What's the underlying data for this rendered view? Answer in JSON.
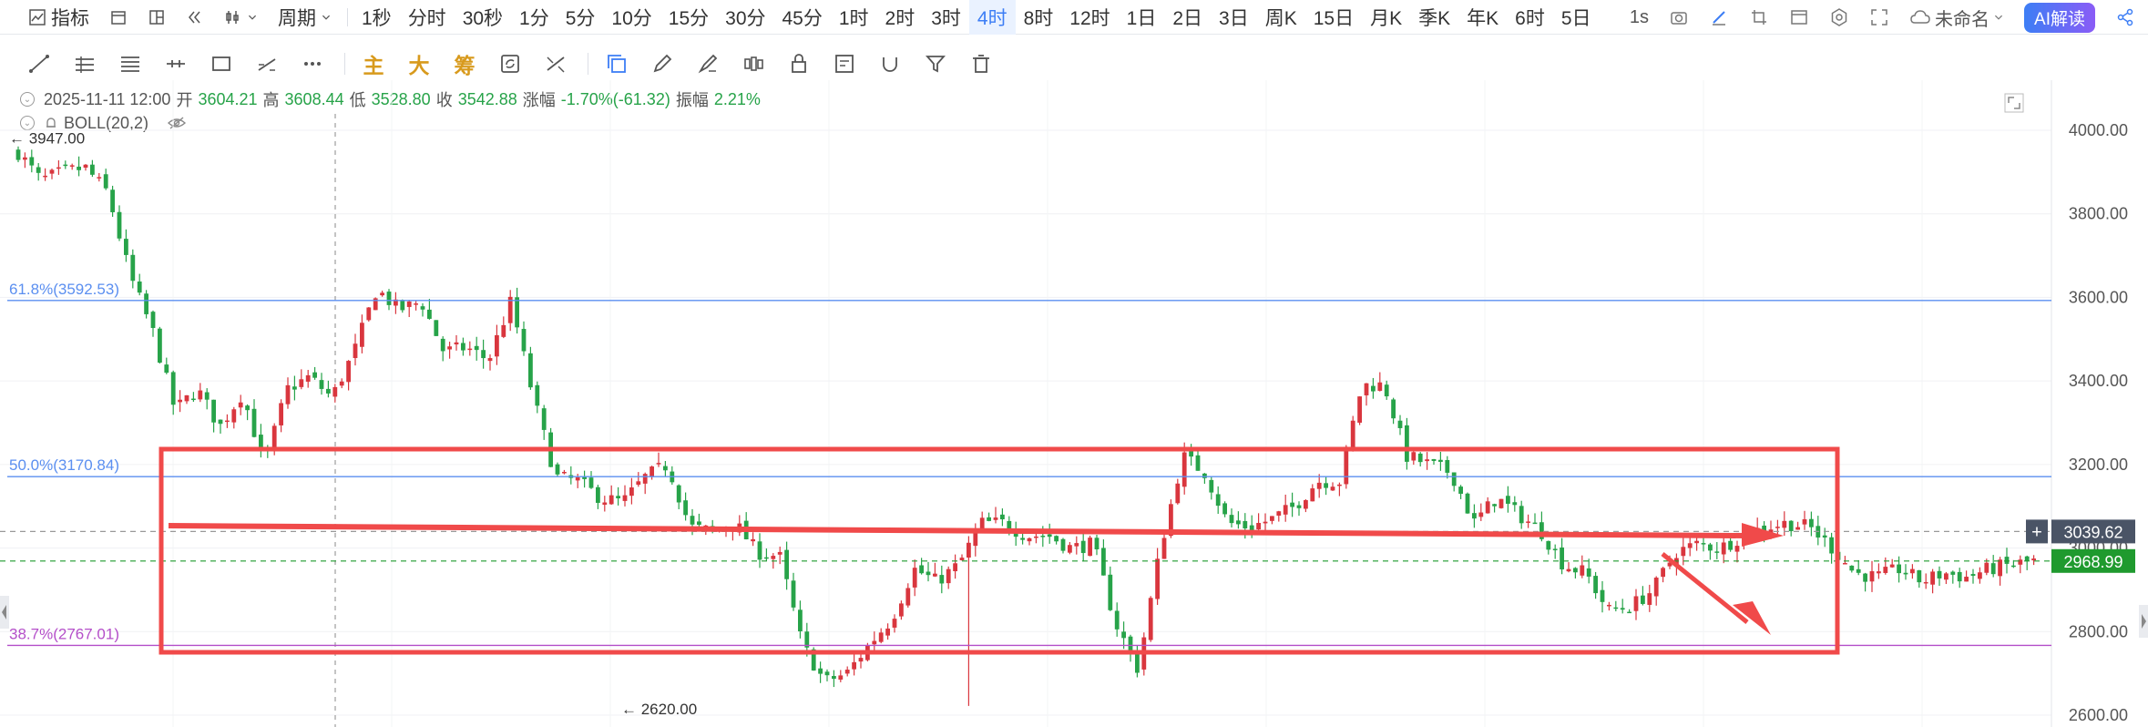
{
  "toolbar": {
    "indicator_label": "指标",
    "period_label": "周期",
    "periods": [
      "1秒",
      "分时",
      "30秒",
      "1分",
      "5分",
      "10分",
      "15分",
      "30分",
      "45分",
      "1时",
      "2时",
      "3时",
      "4时",
      "8时",
      "12时",
      "1日",
      "2日",
      "3日",
      "周K",
      "15日",
      "月K",
      "季K",
      "年K",
      "6时",
      "5日"
    ],
    "active_period": "4时",
    "refresh_label": "1s",
    "cloud_label": "未命名",
    "ai_label": "AI解读"
  },
  "drawing_tools": {
    "text_tools": [
      "主",
      "大",
      "筹"
    ]
  },
  "info": {
    "datetime": "2025-11-11 12:00",
    "open_label": "开",
    "open": "3604.21",
    "high_label": "高",
    "high": "3608.44",
    "low_label": "低",
    "low": "3528.80",
    "close_label": "收",
    "close": "3542.88",
    "change_label": "涨幅",
    "change": "-1.70%(-61.32)",
    "amplitude_label": "振幅",
    "amplitude": "2.21%",
    "indicator": "BOLL(20,2)"
  },
  "colors": {
    "up": "#d9363e",
    "down": "#27a349",
    "fib": "#5b8ff0",
    "fib_low": "#b44fc9",
    "annotation": "#f04a4a",
    "price_tag": "#4a5466",
    "last_tag": "#1f9a2e"
  },
  "chart_data": {
    "type": "candlestick",
    "ylim": [
      2600,
      4000
    ],
    "yticks": [
      "4000.00",
      "3800.00",
      "3600.00",
      "3400.00",
      "3200.00",
      "3000.00",
      "2800.00",
      "2600.00"
    ],
    "fib_levels": [
      {
        "label": "61.8%(3592.53)",
        "value": 3592.53
      },
      {
        "label": "50.0%(3170.84)",
        "value": 3170.84
      },
      {
        "label": "38.7%(2767.01)",
        "value": 2767.01
      }
    ],
    "markers": [
      {
        "label": "← 3947.00",
        "value": 3947.0
      },
      {
        "label": "← 2620.00",
        "value": 2620.0
      }
    ],
    "crosshair_price": "3039.62",
    "last_price": "2968.99",
    "crosshair_value": 3039.62,
    "last_value": 2968.99,
    "anchors": [
      3947,
      3880,
      3900,
      3910,
      3850,
      3650,
      3520,
      3330,
      3380,
      3290,
      3370,
      3200,
      3380,
      3410,
      3360,
      3470,
      3620,
      3570,
      3590,
      3470,
      3480,
      3450,
      3590,
      3360,
      3170,
      3160,
      3120,
      3110,
      3170,
      3200,
      3050,
      3040,
      3060,
      2990,
      2980,
      2770,
      2680,
      2700,
      2770,
      2830,
      2950,
      2920,
      2960,
      3060,
      3060,
      3030,
      3030,
      3000,
      3010,
      2820,
      2710,
      3000,
      3220,
      3180,
      3060,
      3050,
      3070,
      3100,
      3160,
      3160,
      3390,
      3390,
      3220,
      3200,
      3180,
      3060,
      3120,
      3080,
      3040,
      2960,
      2940,
      2850,
      2860,
      2900,
      2990,
      3010,
      3000,
      3030,
      3050,
      3060,
      3050,
      3000,
      2940,
      2930,
      2950,
      2920,
      2940,
      2930,
      2950,
      2960,
      2968.99
    ]
  }
}
